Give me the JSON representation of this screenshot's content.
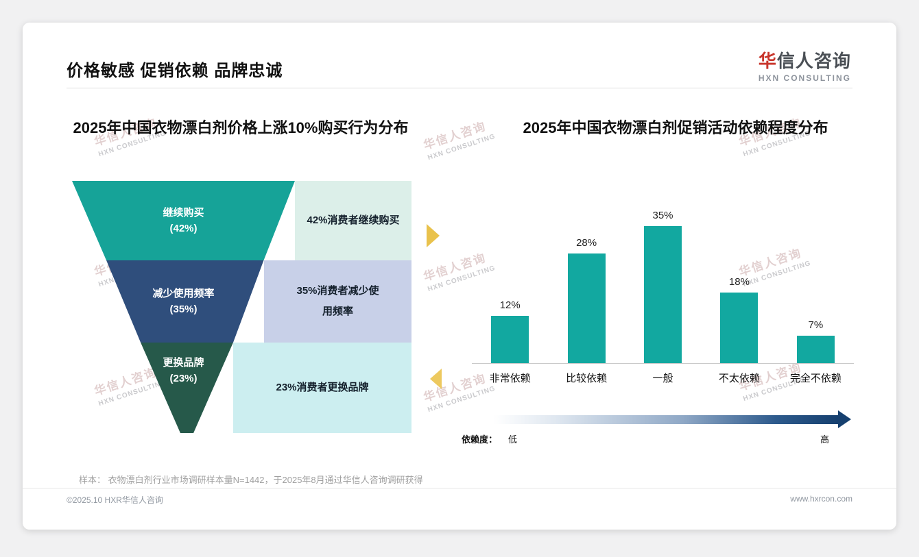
{
  "page": {
    "header": {
      "title": "价格敏感 促销依赖 品牌忠诚",
      "logo": {
        "cn_first": "华",
        "cn_rest": "信人咨询",
        "en": "HXN CONSULTING"
      }
    },
    "watermark": {
      "cn": "华信人咨询",
      "en": "HXN CONSULTING"
    },
    "footnote": "样本： 衣物漂白剂行业市场调研样本量N=1442，于2025年8月通过华信人咨询调研获得",
    "footer": {
      "left": "©2025.10 HXR华信人咨询",
      "right": "www.hxrcon.com"
    }
  },
  "chart_data": [
    {
      "type": "funnel",
      "title": "2025年中国衣物漂白剂价格上涨10%购买行为分布",
      "stages": [
        {
          "label": "继续购买",
          "pct_label": "(42%)",
          "value": 42,
          "annotation": "42%消费者继续购买",
          "color": "#16A398",
          "annotation_bg": "#DCEFE9"
        },
        {
          "label": "减少使用频率",
          "pct_label": "(35%)",
          "value": 35,
          "annotation": "35%消费者减少使用频率",
          "color": "#2F4E7C",
          "annotation_bg": "#C8D0E8"
        },
        {
          "label": "更换品牌",
          "pct_label": "(23%)",
          "value": 23,
          "annotation": "23%消费者更换品牌",
          "color": "#26594A",
          "annotation_bg": "#CCEEF0"
        }
      ]
    },
    {
      "type": "bar",
      "title": "2025年中国衣物漂白剂促销活动依赖程度分布",
      "categories": [
        "非常依赖",
        "比较依赖",
        "一般",
        "不太依赖",
        "完全不依赖"
      ],
      "values": [
        12,
        28,
        35,
        18,
        7
      ],
      "value_labels": [
        "12%",
        "28%",
        "35%",
        "18%",
        "7%"
      ],
      "ylim": [
        0,
        35
      ],
      "bar_color": "#12A8A0",
      "grid": false,
      "legend": "none",
      "axis_note": {
        "label": "依赖度：",
        "low": "低",
        "high": "高"
      }
    }
  ]
}
